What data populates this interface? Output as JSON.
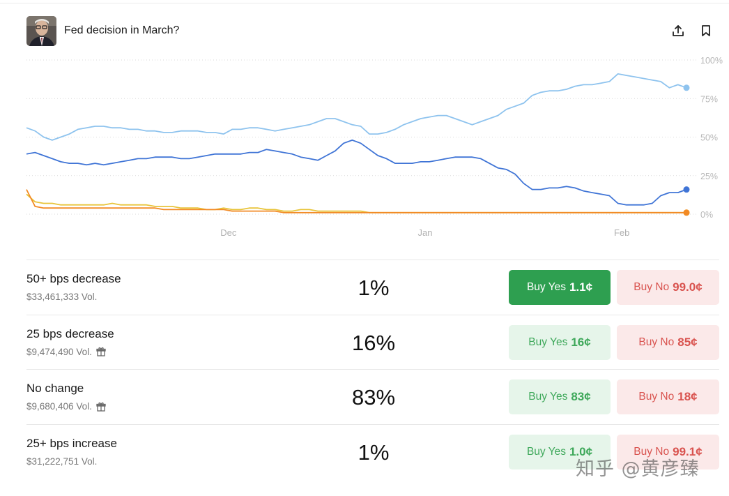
{
  "market": {
    "title": "Fed decision in March?",
    "share_icon": "upload-share-icon",
    "bookmark_icon": "bookmark-icon"
  },
  "chart_data": {
    "type": "line",
    "ylim": [
      0,
      100
    ],
    "y_tick_labels": [
      "100%",
      "75%",
      "50%",
      "25%",
      "0%"
    ],
    "x_tick_labels": [
      "Dec",
      "Jan",
      "Feb"
    ],
    "grid": true,
    "series": [
      {
        "color": "#8ec3ee",
        "values": [
          56,
          54,
          50,
          48,
          50,
          52,
          55,
          56,
          57,
          57,
          56,
          56,
          55,
          55,
          54,
          54,
          53,
          53,
          54,
          54,
          54,
          53,
          53,
          52,
          55,
          55,
          56,
          56,
          55,
          54,
          55,
          56,
          57,
          58,
          60,
          62,
          62,
          60,
          58,
          57,
          52,
          52,
          53,
          55,
          58,
          60,
          62,
          63,
          64,
          64,
          62,
          60,
          58,
          60,
          62,
          64,
          68,
          70,
          72,
          77,
          79,
          80,
          80,
          81,
          83,
          84,
          84,
          85,
          86,
          91,
          90,
          89,
          88,
          87,
          86,
          82,
          84,
          82
        ]
      },
      {
        "color": "#3f74d6",
        "values": [
          39,
          40,
          38,
          36,
          34,
          33,
          33,
          32,
          33,
          32,
          33,
          34,
          35,
          36,
          36,
          37,
          37,
          37,
          36,
          36,
          37,
          38,
          39,
          39,
          39,
          39,
          40,
          40,
          42,
          41,
          40,
          39,
          37,
          36,
          35,
          38,
          41,
          46,
          48,
          46,
          42,
          38,
          36,
          33,
          33,
          33,
          34,
          34,
          35,
          36,
          37,
          37,
          37,
          36,
          33,
          30,
          29,
          26,
          20,
          16,
          16,
          17,
          17,
          18,
          17,
          15,
          14,
          13,
          12,
          7,
          6,
          6,
          6,
          7,
          12,
          14,
          14,
          16
        ]
      },
      {
        "color": "#e8c43a",
        "values": [
          13,
          8,
          7,
          7,
          6,
          6,
          6,
          6,
          6,
          6,
          7,
          6,
          6,
          6,
          6,
          5,
          5,
          5,
          4,
          4,
          4,
          3,
          3,
          4,
          3,
          3,
          4,
          4,
          3,
          3,
          2,
          2,
          3,
          3,
          2,
          2,
          2,
          2,
          2,
          2,
          1,
          1,
          1,
          1,
          1,
          1,
          1,
          1,
          1,
          1,
          1,
          1,
          1,
          1,
          1,
          1,
          1,
          1,
          1,
          1,
          1,
          1,
          1,
          1,
          1,
          1,
          1,
          1,
          1,
          1,
          1,
          1,
          1,
          1,
          1,
          1,
          1,
          1
        ]
      },
      {
        "color": "#f28a24",
        "values": [
          16,
          5,
          4,
          4,
          4,
          4,
          4,
          4,
          4,
          4,
          4,
          4,
          4,
          4,
          4,
          4,
          3,
          3,
          3,
          3,
          3,
          3,
          3,
          3,
          2,
          2,
          2,
          2,
          2,
          2,
          1,
          1,
          1,
          1,
          1,
          1,
          1,
          1,
          1,
          1,
          1,
          1,
          1,
          1,
          1,
          1,
          1,
          1,
          1,
          1,
          1,
          1,
          1,
          1,
          1,
          1,
          1,
          1,
          1,
          1,
          1,
          1,
          1,
          1,
          1,
          1,
          1,
          1,
          1,
          1,
          1,
          1,
          1,
          1,
          1,
          1,
          1,
          1
        ]
      }
    ]
  },
  "outcomes": [
    {
      "name": "50+ bps decrease",
      "volume": "$33,461,333 Vol.",
      "gift": false,
      "percent": "1%",
      "yes_label": "Buy Yes",
      "yes_price": "1.1¢",
      "no_label": "Buy No",
      "no_price": "99.0¢",
      "yes_active": true
    },
    {
      "name": "25 bps decrease",
      "volume": "$9,474,490 Vol.",
      "gift": true,
      "percent": "16%",
      "yes_label": "Buy Yes",
      "yes_price": "16¢",
      "no_label": "Buy No",
      "no_price": "85¢",
      "yes_active": false
    },
    {
      "name": "No change",
      "volume": "$9,680,406 Vol.",
      "gift": true,
      "percent": "83%",
      "yes_label": "Buy Yes",
      "yes_price": "83¢",
      "no_label": "Buy No",
      "no_price": "18¢",
      "yes_active": false
    },
    {
      "name": "25+ bps increase",
      "volume": "$31,222,751 Vol.",
      "gift": false,
      "percent": "1%",
      "yes_label": "Buy Yes",
      "yes_price": "1.0¢",
      "no_label": "Buy No",
      "no_price": "99.1¢",
      "yes_active": false
    }
  ],
  "watermark": "知乎 @黄彦臻"
}
